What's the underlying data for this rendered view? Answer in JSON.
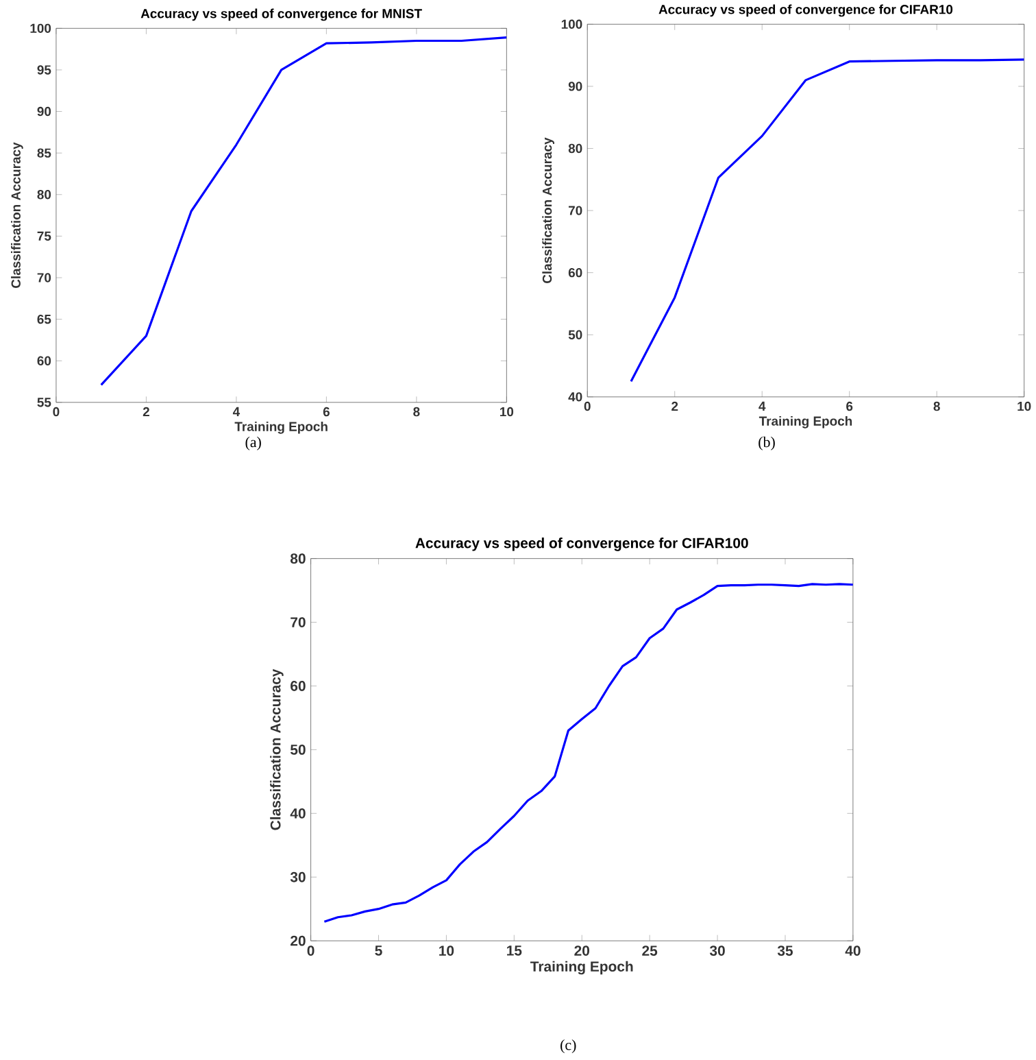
{
  "chart_data": [
    {
      "type": "line",
      "title": "Accuracy vs speed of convergence for MNIST",
      "xlabel": "Training Epoch",
      "ylabel": "Classification Accuracy",
      "annotations": [
        "(a)"
      ],
      "x": [
        1,
        2,
        3,
        4,
        5,
        6,
        7,
        8,
        9,
        10
      ],
      "series": [
        {
          "color": "#0000ff",
          "values": [
            57.1,
            63,
            78,
            86,
            95,
            98.2,
            98.3,
            98.5,
            98.5,
            98.9
          ]
        }
      ],
      "xlim": [
        0,
        10
      ],
      "ylim": [
        55,
        100
      ],
      "xticks": [
        0,
        2,
        4,
        6,
        8,
        10
      ],
      "yticks": [
        55,
        60,
        65,
        70,
        75,
        80,
        85,
        90,
        95,
        100
      ],
      "marker": "none",
      "line_style": "solid"
    },
    {
      "type": "line",
      "title": "Accuracy vs speed of convergence for CIFAR10",
      "xlabel": "Training Epoch",
      "ylabel": "Classification Accuracy",
      "annotations": [
        "(b)"
      ],
      "x": [
        1,
        2,
        3,
        4,
        5,
        6,
        7,
        8,
        9,
        10
      ],
      "series": [
        {
          "color": "#0000ff",
          "values": [
            42.5,
            56,
            75.3,
            82,
            91,
            94,
            94.1,
            94.2,
            94.2,
            94.3
          ]
        }
      ],
      "xlim": [
        0,
        10
      ],
      "ylim": [
        40,
        100
      ],
      "xticks": [
        0,
        2,
        4,
        6,
        8,
        10
      ],
      "yticks": [
        40,
        50,
        60,
        70,
        80,
        90,
        100
      ],
      "marker": "none",
      "line_style": "solid"
    },
    {
      "type": "line",
      "title": "Accuracy vs speed of convergence for CIFAR100",
      "xlabel": "Training Epoch",
      "ylabel": "Classification Accuracy",
      "annotations": [
        "(c)"
      ],
      "x": [
        1,
        2,
        3,
        4,
        5,
        6,
        7,
        8,
        9,
        10,
        11,
        12,
        13,
        14,
        15,
        16,
        17,
        18,
        19,
        20,
        21,
        22,
        23,
        24,
        25,
        26,
        27,
        28,
        29,
        30,
        31,
        32,
        33,
        34,
        35,
        36,
        37,
        38,
        39,
        40
      ],
      "series": [
        {
          "color": "#0000ff",
          "values": [
            23,
            23.7,
            24,
            24.6,
            25,
            25.7,
            26,
            27.1,
            28.4,
            29.5,
            32,
            34,
            35.5,
            37.6,
            39.6,
            42,
            43.5,
            45.8,
            53,
            54.8,
            56.5,
            60,
            63.1,
            64.5,
            67.5,
            69,
            72,
            73.1,
            74.3,
            75.7,
            75.8,
            75.8,
            75.9,
            75.9,
            75.8,
            75.7,
            76,
            75.9,
            76,
            75.9
          ]
        }
      ],
      "xlim": [
        0,
        40
      ],
      "ylim": [
        20,
        80
      ],
      "xticks": [
        0,
        5,
        10,
        15,
        20,
        25,
        30,
        35,
        40
      ],
      "yticks": [
        20,
        30,
        40,
        50,
        60,
        70,
        80
      ],
      "marker": "none",
      "line_style": "solid"
    }
  ]
}
